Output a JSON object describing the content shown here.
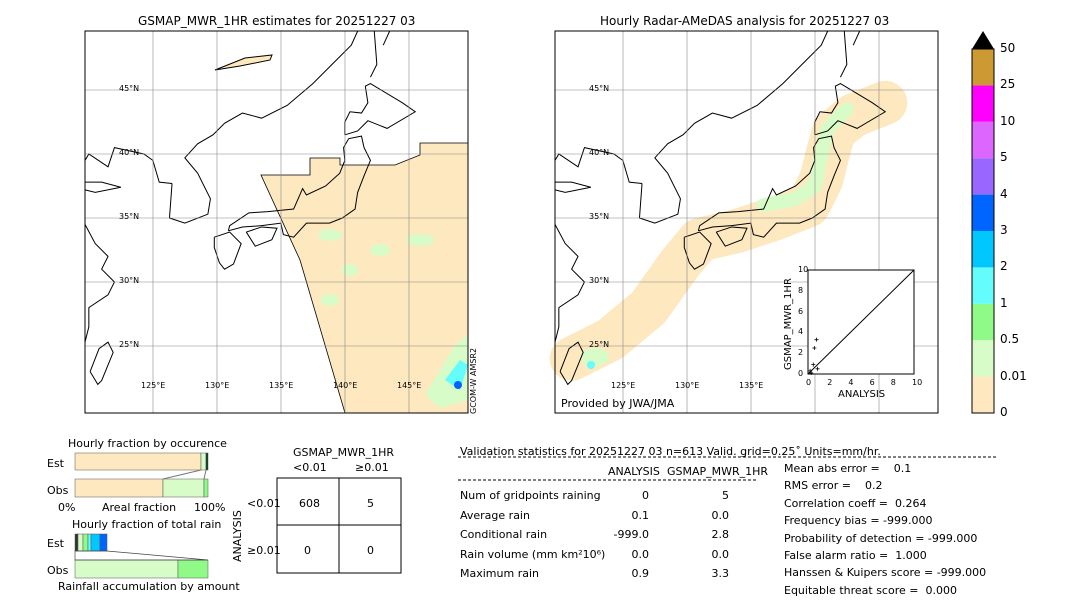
{
  "left_map": {
    "title": "GSMAP_MWR_1HR estimates for 20251227 03",
    "side_label": "GCOM-W AMSR2",
    "lat_labels": [
      "45°N",
      "40°N",
      "35°N",
      "30°N",
      "25°N"
    ],
    "lon_labels": [
      "125°E",
      "130°E",
      "135°E",
      "140°E",
      "145°E"
    ]
  },
  "right_map": {
    "title": "Hourly Radar-AMeDAS analysis for 20251227 03",
    "credit": "Provided by JWA/JMA",
    "lat_labels": [
      "45°N",
      "40°N",
      "35°N",
      "30°N",
      "25°N"
    ],
    "lon_labels": [
      "125°E",
      "130°E",
      "135°E"
    ]
  },
  "inset": {
    "ylabel": "GSMAP_MWR_1HR",
    "xlabel": "ANALYSIS",
    "ticks": [
      "0",
      "2",
      "4",
      "6",
      "8",
      "10"
    ]
  },
  "colorbar": {
    "labels": [
      "0",
      "0.01",
      "0.5",
      "1",
      "2",
      "3",
      "4",
      "5",
      "10",
      "25",
      "50"
    ],
    "colors": [
      "#fee8c0",
      "#d8fcc8",
      "#90fa88",
      "#64fcfc",
      "#00c8ff",
      "#0064ff",
      "#9966ff",
      "#dd66ff",
      "#ff00ff",
      "#cc9933"
    ]
  },
  "occurrence": {
    "title": "Hourly fraction by occurence",
    "est": "Est",
    "obs": "Obs",
    "x0": "0%",
    "xlabel": "Areal fraction",
    "x1": "100%"
  },
  "totalrain": {
    "title": "Hourly fraction of total rain",
    "est": "Est",
    "obs": "Obs",
    "xlabel": "Rainfall accumulation by amount"
  },
  "contingency": {
    "title": "GSMAP_MWR_1HR",
    "col1": "<0.01",
    "col2": "≥0.01",
    "ylabel": "ANALYSIS",
    "row1": "<0.01",
    "row2": "≥0.01",
    "cells": [
      "608",
      "5",
      "0",
      "0"
    ]
  },
  "stats": {
    "header": "Validation statistics for 20251227 03  n=613 Valid. grid=0.25˚ Units=mm/hr.",
    "col_a": "ANALYSIS",
    "col_b": "GSMAP_MWR_1HR",
    "rows": [
      [
        "Num of gridpoints raining",
        "0",
        "5"
      ],
      [
        "Average rain",
        "0.1",
        "0.0"
      ],
      [
        "Conditional rain",
        "-999.0",
        "2.8"
      ],
      [
        "Rain volume (mm km²10⁶)",
        "0.0",
        "0.0"
      ],
      [
        "Maximum rain",
        "0.9",
        "3.3"
      ]
    ],
    "scores": [
      "Mean abs error =    0.1",
      "RMS error =    0.2",
      "Correlation coeff =  0.264",
      "Frequency bias = -999.000",
      "Probability of detection = -999.000",
      "False alarm ratio =  1.000",
      "Hanssen & Kuipers score = -999.000",
      "Equitable threat score =  0.000"
    ]
  },
  "chart_data": [
    {
      "type": "bar",
      "title": "Hourly fraction by occurence",
      "xlabel": "Areal fraction",
      "categories": [
        "Est",
        "Obs"
      ],
      "series": [
        {
          "values": [
            0.95,
            0.66
          ]
        },
        {
          "values": [
            0.04,
            0.31
          ]
        },
        {
          "values": [
            0.01,
            0.03
          ]
        }
      ]
    },
    {
      "type": "bar",
      "title": "Hourly fraction of total rain",
      "xlabel": "Rainfall accumulation by amount",
      "categories": [
        "Est",
        "Obs"
      ]
    },
    {
      "type": "table",
      "title": "GSMAP_MWR_1HR vs ANALYSIS",
      "cells": [
        [
          608,
          5
        ],
        [
          0,
          0
        ]
      ]
    },
    {
      "type": "scatter",
      "xlabel": "ANALYSIS",
      "ylabel": "GSMAP_MWR_1HR",
      "xlim": [
        0,
        10
      ],
      "ylim": [
        0,
        10
      ]
    }
  ]
}
